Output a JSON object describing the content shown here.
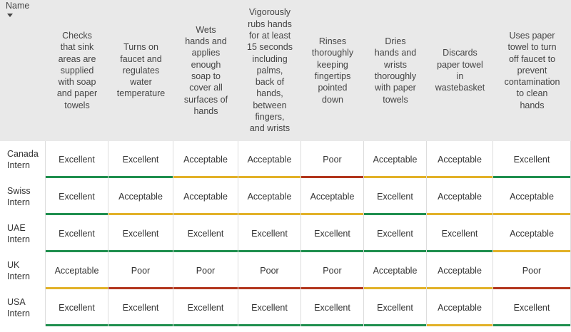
{
  "colors": {
    "Excellent": "#1f8f4e",
    "Acceptable": "#e2b128",
    "Poor": "#b2361d",
    "header_bg": "#e9e9e9"
  },
  "table": {
    "name_header": "Name",
    "sort_icon": "sort-descending-icon",
    "columns": [
      "Checks that sink areas are supplied with soap and paper towels",
      "Turns on faucet and regulates water temperature",
      "Wets hands and applies enough soap to cover all surfaces of hands",
      "Vigorously rubs hands for at least 15 seconds including palms, back of hands, between fingers, and wrists",
      "Rinses thoroughly keeping fingertips pointed down",
      "Dries hands and wrists thoroughly with paper towels",
      "Discards paper towel in wastebasket",
      "Uses paper towel to turn off faucet to prevent contamination to clean hands"
    ],
    "rows": [
      {
        "name": "Canada Intern",
        "values": [
          "Excellent",
          "Excellent",
          "Acceptable",
          "Acceptable",
          "Poor",
          "Acceptable",
          "Acceptable",
          "Excellent"
        ]
      },
      {
        "name": "Swiss Intern",
        "values": [
          "Excellent",
          "Acceptable",
          "Acceptable",
          "Acceptable",
          "Acceptable",
          "Excellent",
          "Acceptable",
          "Acceptable"
        ]
      },
      {
        "name": "UAE Intern",
        "values": [
          "Excellent",
          "Excellent",
          "Excellent",
          "Excellent",
          "Excellent",
          "Excellent",
          "Excellent",
          "Acceptable"
        ]
      },
      {
        "name": "UK Intern",
        "values": [
          "Acceptable",
          "Poor",
          "Poor",
          "Poor",
          "Poor",
          "Acceptable",
          "Acceptable",
          "Poor"
        ]
      },
      {
        "name": "USA Intern",
        "values": [
          "Excellent",
          "Excellent",
          "Excellent",
          "Excellent",
          "Excellent",
          "Excellent",
          "Acceptable",
          "Excellent"
        ]
      }
    ]
  }
}
